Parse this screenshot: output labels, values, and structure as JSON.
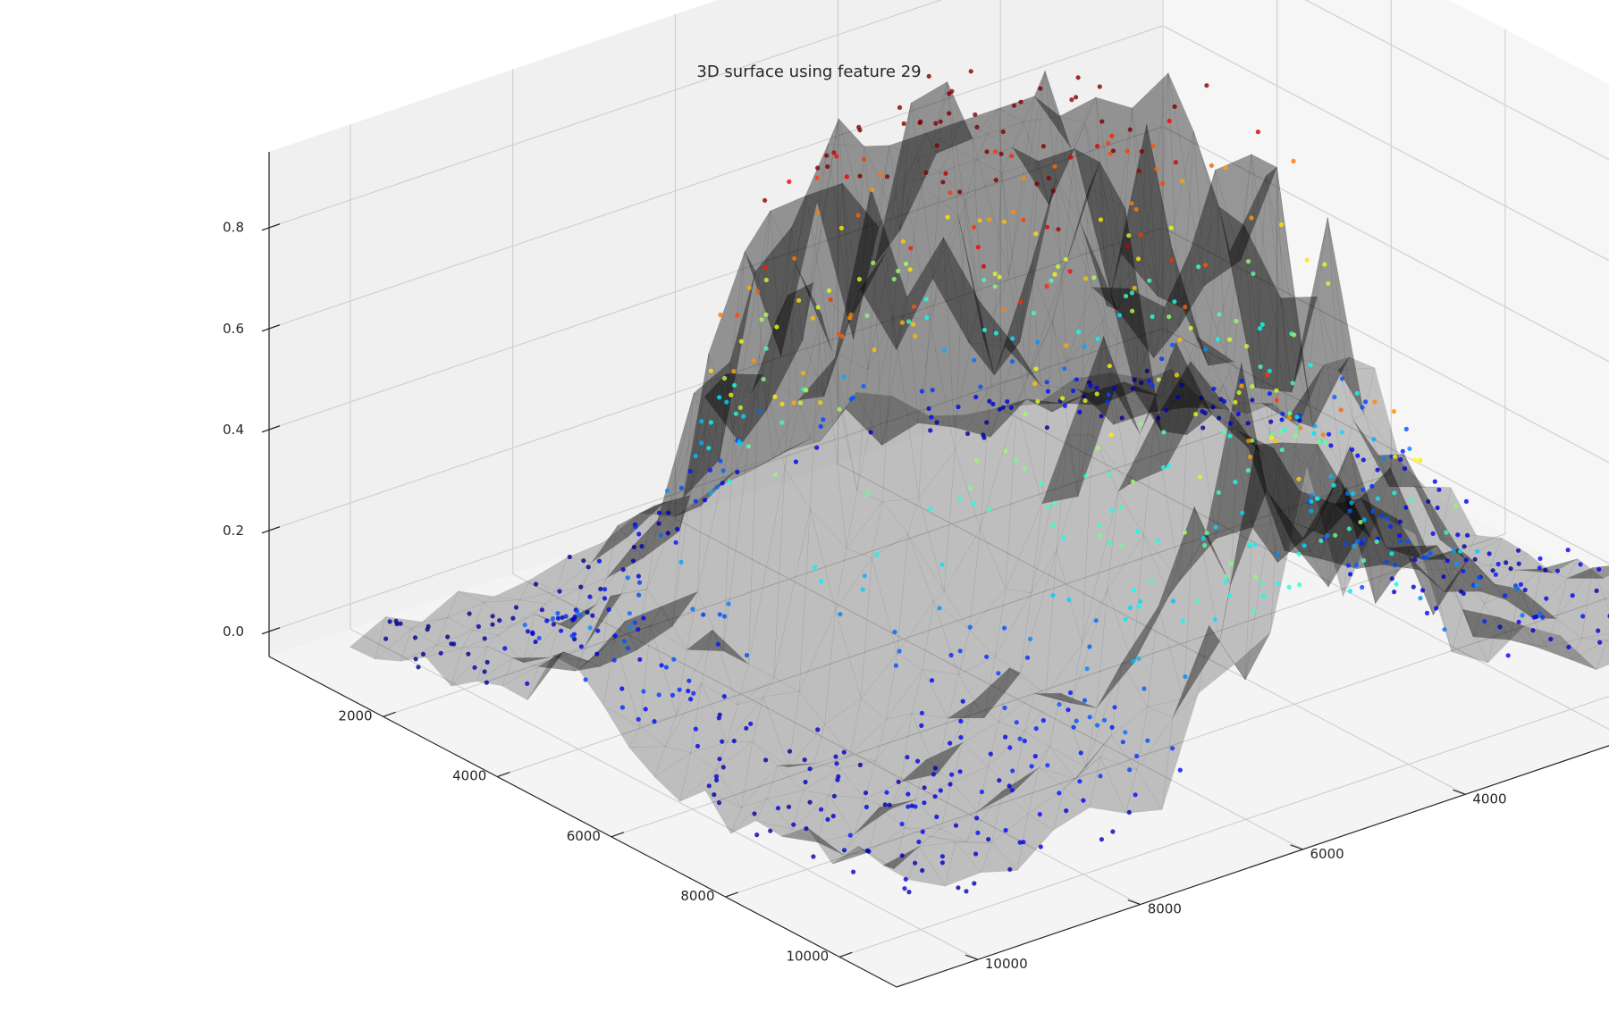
{
  "chart_data": {
    "type": "surface3d",
    "title": "3D surface using feature 29",
    "xlabel": "",
    "ylabel": "",
    "zlabel": "",
    "x_ticks": [
      "2000",
      "4000",
      "6000",
      "8000",
      "10000"
    ],
    "y_ticks": [
      "2000",
      "4000",
      "6000",
      "8000",
      "10000"
    ],
    "z_ticks": [
      "0.0",
      "0.2",
      "0.4",
      "0.6",
      "0.8"
    ],
    "xlim": [
      0,
      11000
    ],
    "ylim": [
      0,
      11000
    ],
    "zlim": [
      -0.05,
      0.95
    ],
    "grid": true,
    "surface_color": "#000000",
    "colormap": "jet",
    "colormap_stops": [
      "#00007f",
      "#0000ff",
      "#007fff",
      "#00ffff",
      "#7fff7f",
      "#ffff00",
      "#ff7f00",
      "#ff0000",
      "#7f0000"
    ],
    "surface_description": "semi-transparent dark triangulated surface with two ridges (around x≈4000–6000 and y≈4000–6000) and a low plateau near the far corner",
    "scatter_description": "roughly 900 points coloured by z value; low values (dark blue) dominate, high values (orange to dark red) concentrated on the ridge near x≈3000–5000, y≈5000–7000"
  }
}
